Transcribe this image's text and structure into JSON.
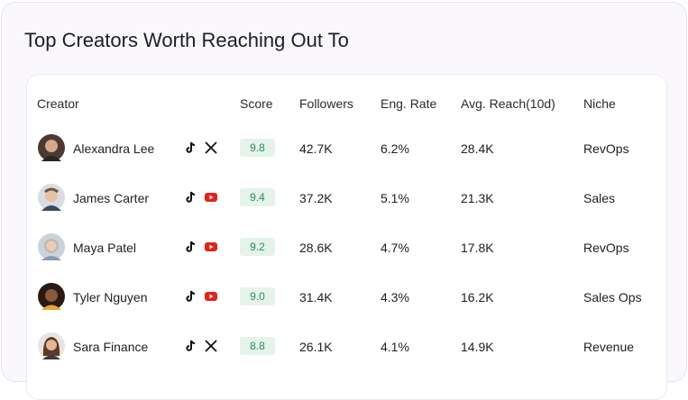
{
  "title": "Top Creators Worth Reaching Out To",
  "table": {
    "headers": [
      "Creator",
      "Score",
      "Followers",
      "Eng. Rate",
      "Avg. Reach(10d)",
      "Niche"
    ],
    "rows": [
      [
        "Alexandra Lee",
        "9.8",
        "42.7K",
        "6.2%",
        "28.4K",
        "RevOps"
      ],
      [
        "James Carter",
        "9.4",
        "37.2K",
        "5.1%",
        "21.3K",
        "Sales"
      ],
      [
        "Maya Patel",
        "9.2",
        "28.6K",
        "4.7%",
        "17.8K",
        "RevOps"
      ],
      [
        "Tyler Nguyen",
        "9.0",
        "31.4K",
        "4.3%",
        "16.2K",
        "Sales Ops"
      ],
      [
        "Sara Finance",
        "8.8",
        "26.1K",
        "4.1%",
        "14.9K",
        "Revenue"
      ]
    ]
  }
}
